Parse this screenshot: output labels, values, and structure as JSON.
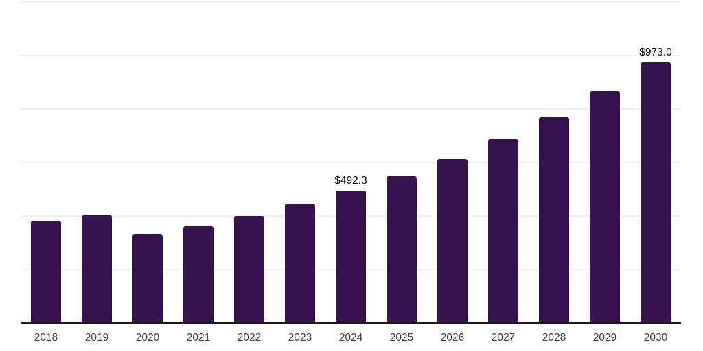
{
  "page": {
    "background": "#ffffff"
  },
  "chart_data": {
    "type": "bar",
    "title": "",
    "xlabel": "",
    "ylabel": "",
    "categories": [
      "2018",
      "2019",
      "2020",
      "2021",
      "2022",
      "2023",
      "2024",
      "2025",
      "2026",
      "2027",
      "2028",
      "2029",
      "2030"
    ],
    "values": [
      380,
      400,
      328,
      359,
      398,
      443,
      492.3,
      547,
      610,
      684,
      766,
      864,
      973.0
    ],
    "value_labels": [
      "",
      "",
      "",
      "",
      "",
      "",
      "$492.3",
      "",
      "",
      "",
      "",
      "",
      "$973.0"
    ],
    "ylim": [
      0,
      1200
    ],
    "y_gridlines": [
      200,
      400,
      600,
      800,
      1000,
      1200
    ],
    "grid": "horizontal",
    "legend": "none",
    "y_tick_labels_visible": false,
    "colors": {
      "bar": "#36134f",
      "axis_line": "#1b1b1b",
      "gridline": "#efefef",
      "x_tick_label": "#3c3c3c",
      "data_label": "#0c0c0c"
    }
  }
}
